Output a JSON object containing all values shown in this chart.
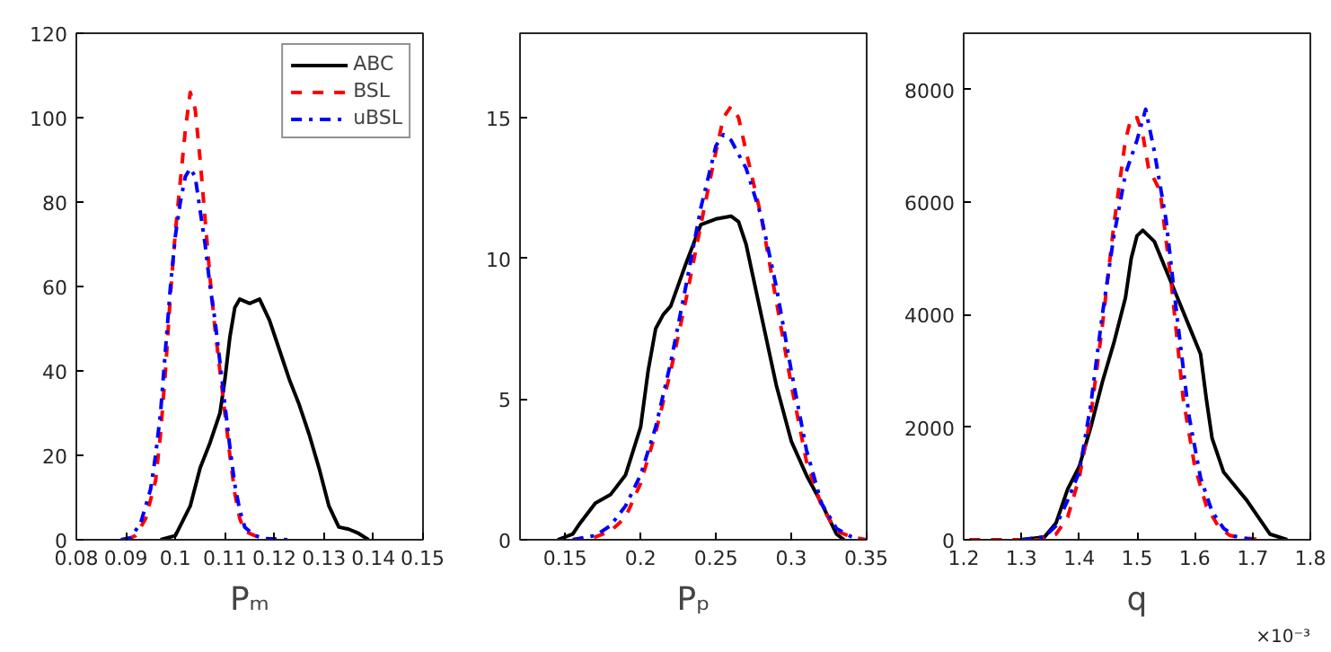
{
  "chart_data": [
    {
      "type": "line",
      "xlabel": "Pₘ",
      "xlim": [
        0.08,
        0.15
      ],
      "xticks": [
        0.08,
        0.09,
        0.1,
        0.11,
        0.12,
        0.13,
        0.14,
        0.15
      ],
      "ylim": [
        0,
        120
      ],
      "yticks": [
        0,
        20,
        40,
        60,
        80,
        100,
        120
      ],
      "grid": false,
      "legend": "top right",
      "series": [
        {
          "name": "ABC",
          "color": "#000000",
          "line_style": "solid",
          "x": [
            0.097,
            0.1,
            0.103,
            0.105,
            0.107,
            0.109,
            0.11,
            0.111,
            0.112,
            0.113,
            0.115,
            0.117,
            0.119,
            0.121,
            0.123,
            0.125,
            0.127,
            0.129,
            0.131,
            0.133,
            0.135,
            0.137,
            0.139
          ],
          "values": [
            0,
            1,
            8,
            17,
            23,
            30,
            38,
            48,
            55,
            57,
            56,
            57,
            52,
            45,
            38,
            32,
            25,
            17,
            8,
            3,
            2.5,
            1.5,
            0
          ]
        },
        {
          "name": "BSL",
          "color": "#ff0000",
          "line_style": "dashed",
          "x": [
            0.09,
            0.092,
            0.094,
            0.096,
            0.097,
            0.098,
            0.099,
            0.1,
            0.101,
            0.102,
            0.103,
            0.104,
            0.105,
            0.106,
            0.107,
            0.108,
            0.109,
            0.11,
            0.111,
            0.112,
            0.113,
            0.114,
            0.116,
            0.118,
            0.12
          ],
          "values": [
            0,
            1,
            5,
            14,
            25,
            40,
            58,
            73,
            85,
            97,
            106,
            102,
            90,
            76,
            62,
            50,
            40,
            30,
            20,
            11,
            5,
            2,
            1,
            0.3,
            0
          ]
        },
        {
          "name": "uBSL",
          "color": "#0000ff",
          "line_style": "dashdot",
          "x": [
            0.089,
            0.091,
            0.093,
            0.095,
            0.096,
            0.097,
            0.098,
            0.099,
            0.1,
            0.101,
            0.102,
            0.103,
            0.104,
            0.105,
            0.106,
            0.107,
            0.108,
            0.109,
            0.11,
            0.111,
            0.112,
            0.113,
            0.114,
            0.116,
            0.118,
            0.123
          ],
          "values": [
            0,
            0.5,
            4,
            12,
            20,
            30,
            45,
            60,
            72,
            80,
            86,
            88,
            86,
            78,
            70,
            60,
            52,
            42,
            32,
            22,
            13,
            7,
            3,
            1,
            0.3,
            0
          ]
        }
      ]
    },
    {
      "type": "line",
      "xlabel": "Pₚ",
      "xlim": [
        0.12,
        0.35
      ],
      "xticks": [
        0.15,
        0.2,
        0.25,
        0.3,
        0.35
      ],
      "ylim": [
        0,
        18
      ],
      "yticks": [
        0,
        5,
        10,
        15
      ],
      "grid": false,
      "series": [
        {
          "color": "#000000",
          "line_style": "solid",
          "x": [
            0.145,
            0.155,
            0.16,
            0.17,
            0.18,
            0.19,
            0.2,
            0.205,
            0.21,
            0.215,
            0.22,
            0.23,
            0.24,
            0.25,
            0.26,
            0.265,
            0.27,
            0.28,
            0.29,
            0.3,
            0.31,
            0.32,
            0.33,
            0.335
          ],
          "values": [
            0,
            0.2,
            0.6,
            1.3,
            1.6,
            2.3,
            4,
            6,
            7.5,
            8,
            8.3,
            9.8,
            11.2,
            11.4,
            11.5,
            11.3,
            10.5,
            8,
            5.5,
            3.5,
            2.3,
            1.3,
            0.2,
            0
          ]
        },
        {
          "color": "#ff0000",
          "line_style": "dashed",
          "x": [
            0.155,
            0.17,
            0.18,
            0.19,
            0.2,
            0.21,
            0.22,
            0.23,
            0.24,
            0.25,
            0.255,
            0.26,
            0.265,
            0.27,
            0.28,
            0.29,
            0.3,
            0.31,
            0.32,
            0.33,
            0.34,
            0.35
          ],
          "values": [
            0,
            0.1,
            0.3,
            0.8,
            2,
            3.8,
            6,
            8.5,
            11.2,
            13.8,
            15,
            15.4,
            15,
            13.8,
            11.5,
            8.5,
            5.5,
            2.8,
            1.2,
            0.3,
            0.1,
            0
          ]
        },
        {
          "color": "#0000ff",
          "line_style": "dashdot",
          "x": [
            0.155,
            0.17,
            0.18,
            0.19,
            0.2,
            0.21,
            0.22,
            0.23,
            0.24,
            0.25,
            0.255,
            0.26,
            0.27,
            0.28,
            0.29,
            0.3,
            0.31,
            0.32,
            0.33,
            0.34,
            0.345
          ],
          "values": [
            0,
            0.15,
            0.5,
            1.2,
            2.3,
            4,
            6.3,
            9,
            11.8,
            14,
            14.4,
            14.2,
            13.2,
            11.5,
            9,
            6,
            3.2,
            1.3,
            0.4,
            0.1,
            0
          ]
        }
      ]
    },
    {
      "type": "line",
      "xlabel": "q",
      "annotations": [
        "×10⁻³"
      ],
      "xlim": [
        1.2,
        1.8
      ],
      "xticks": [
        1.2,
        1.3,
        1.4,
        1.5,
        1.6,
        1.7,
        1.8
      ],
      "ylim": [
        0,
        9000
      ],
      "yticks": [
        0,
        2000,
        4000,
        6000,
        8000
      ],
      "grid": false,
      "series": [
        {
          "color": "#000000",
          "line_style": "solid",
          "x": [
            1.3,
            1.34,
            1.36,
            1.38,
            1.4,
            1.42,
            1.44,
            1.46,
            1.48,
            1.49,
            1.5,
            1.51,
            1.53,
            1.55,
            1.57,
            1.59,
            1.61,
            1.62,
            1.63,
            1.65,
            1.67,
            1.69,
            1.71,
            1.73,
            1.76
          ],
          "values": [
            0,
            50,
            300,
            900,
            1300,
            2000,
            2800,
            3500,
            4300,
            5000,
            5400,
            5500,
            5300,
            4800,
            4300,
            3800,
            3300,
            2500,
            1800,
            1200,
            950,
            700,
            400,
            100,
            0
          ]
        },
        {
          "color": "#ff0000",
          "line_style": "dashed",
          "x": [
            1.21,
            1.28,
            1.33,
            1.36,
            1.38,
            1.4,
            1.42,
            1.44,
            1.46,
            1.48,
            1.49,
            1.5,
            1.51,
            1.52,
            1.54,
            1.56,
            1.58,
            1.6,
            1.62,
            1.64,
            1.66,
            1.68,
            1.7,
            1.71
          ],
          "values": [
            0,
            0,
            0,
            100,
            400,
            1100,
            2200,
            3800,
            5600,
            7100,
            7500,
            7500,
            7200,
            6600,
            6200,
            4500,
            2500,
            1300,
            600,
            250,
            80,
            30,
            20,
            0
          ]
        },
        {
          "color": "#0000ff",
          "line_style": "dashdot",
          "x": [
            1.3,
            1.34,
            1.36,
            1.38,
            1.4,
            1.42,
            1.44,
            1.46,
            1.48,
            1.5,
            1.515,
            1.53,
            1.55,
            1.57,
            1.59,
            1.61,
            1.63,
            1.65,
            1.67,
            1.7
          ],
          "values": [
            0,
            50,
            250,
            700,
            1200,
            2400,
            4000,
            5400,
            6500,
            7100,
            7650,
            6900,
            5700,
            3900,
            2200,
            1100,
            500,
            200,
            60,
            0
          ]
        }
      ]
    }
  ]
}
